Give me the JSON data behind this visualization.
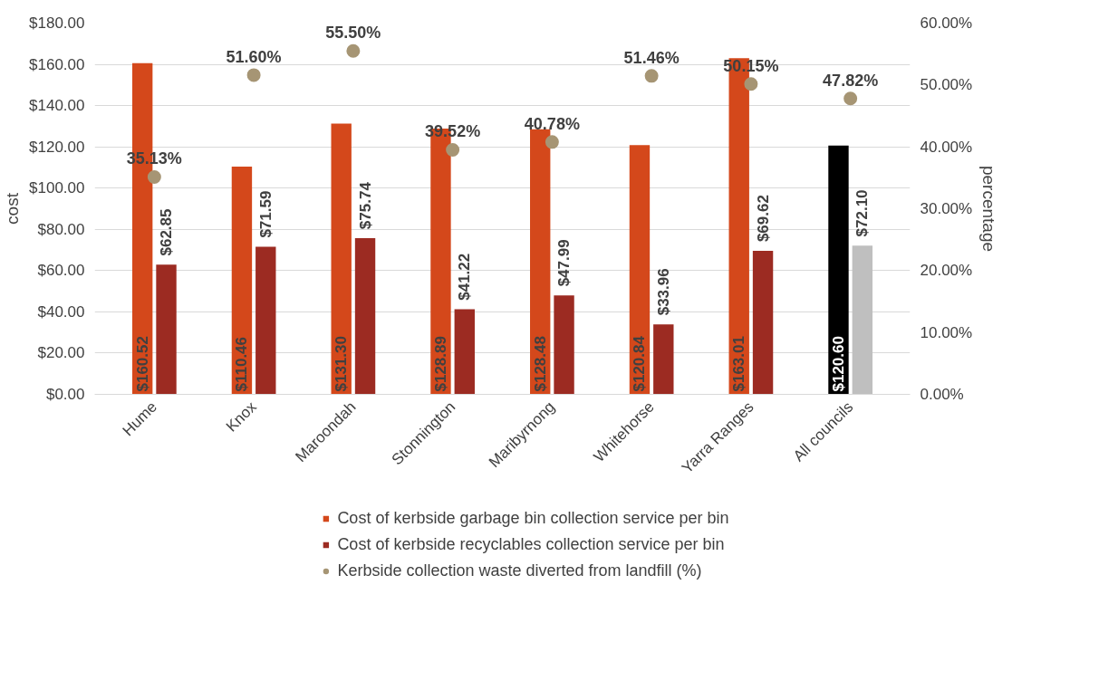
{
  "chart_data": {
    "type": "bar",
    "ylabel": "cost",
    "y2label": "percentage",
    "categories": [
      "Hume",
      "Knox",
      "Maroondah",
      "Stonnington",
      "Maribyrnong",
      "Whitehorse",
      "Yarra Ranges",
      "All councils"
    ],
    "series": [
      {
        "name": "Cost of kerbside garbage bin collection service per bin",
        "color": "#d4481b",
        "colors": [
          "#d4481b",
          "#d4481b",
          "#d4481b",
          "#d4481b",
          "#d4481b",
          "#d4481b",
          "#d4481b",
          "#000000"
        ],
        "values": [
          160.52,
          110.46,
          131.3,
          128.89,
          128.48,
          120.84,
          163.01,
          120.6
        ],
        "value_labels": [
          "$160.52",
          "$110.46",
          "$131.30",
          "$128.89",
          "$128.48",
          "$120.84",
          "$163.01",
          "$120.60"
        ]
      },
      {
        "name": "Cost of kerbside recyclables collection service per bin",
        "color": "#9c2b22",
        "colors": [
          "#9c2b22",
          "#9c2b22",
          "#9c2b22",
          "#9c2b22",
          "#9c2b22",
          "#9c2b22",
          "#9c2b22",
          "#bfbfbf"
        ],
        "values": [
          62.85,
          71.59,
          75.74,
          41.22,
          47.99,
          33.96,
          69.62,
          72.1
        ],
        "value_labels": [
          "$62.85",
          "$71.59",
          "$75.74",
          "$41.22",
          "$47.99",
          "$33.96",
          "$69.62",
          "$72.10"
        ]
      },
      {
        "name": "Kerbside collection waste diverted from landfill (%)",
        "type": "scatter",
        "axis": "y2",
        "color": "#a69574",
        "values": [
          35.13,
          51.6,
          55.5,
          39.52,
          40.78,
          51.46,
          50.15,
          47.82
        ],
        "value_labels": [
          "35.13%",
          "51.60%",
          "55.50%",
          "39.52%",
          "40.78%",
          "51.46%",
          "50.15%",
          "47.82%"
        ]
      }
    ],
    "ylim": [
      0,
      180
    ],
    "yticks": [
      {
        "value": 0,
        "label": "$0.00"
      },
      {
        "value": 20,
        "label": "$20.00"
      },
      {
        "value": 40,
        "label": "$40.00"
      },
      {
        "value": 60,
        "label": "$60.00"
      },
      {
        "value": 80,
        "label": "$80.00"
      },
      {
        "value": 100,
        "label": "$100.00"
      },
      {
        "value": 120,
        "label": "$120.00"
      },
      {
        "value": 140,
        "label": "$140.00"
      },
      {
        "value": 160,
        "label": "$160.00"
      },
      {
        "value": 180,
        "label": "$180.00"
      }
    ],
    "y2lim": [
      0,
      60
    ],
    "y2ticks": [
      {
        "value": 0,
        "label": "0.00%"
      },
      {
        "value": 10,
        "label": "10.00%"
      },
      {
        "value": 20,
        "label": "20.00%"
      },
      {
        "value": 30,
        "label": "30.00%"
      },
      {
        "value": 40,
        "label": "40.00%"
      },
      {
        "value": 50,
        "label": "50.00%"
      },
      {
        "value": 60,
        "label": "60.00%"
      }
    ],
    "grid": "y",
    "legend": "bottom",
    "marker": "circle"
  }
}
